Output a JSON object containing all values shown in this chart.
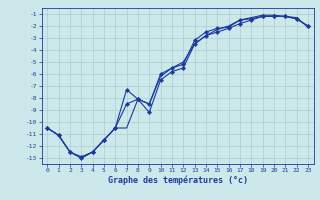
{
  "xlabel": "Graphe des températures (°c)",
  "bg_color": "#cce8ea",
  "line_color": "#1a3a9e",
  "grid_color": "#aacccc",
  "xlim": [
    -0.5,
    23.5
  ],
  "ylim": [
    -13.5,
    -0.5
  ],
  "yticks": [
    -13,
    -12,
    -11,
    -10,
    -9,
    -8,
    -7,
    -6,
    -5,
    -4,
    -3,
    -2,
    -1
  ],
  "xticks": [
    0,
    1,
    2,
    3,
    4,
    5,
    6,
    7,
    8,
    9,
    10,
    11,
    12,
    13,
    14,
    15,
    16,
    17,
    18,
    19,
    20,
    21,
    22,
    23
  ],
  "line1_x": [
    0,
    1,
    2,
    3,
    4,
    5,
    6,
    7,
    8,
    9,
    10,
    11,
    12,
    13,
    14,
    15,
    16,
    17,
    18,
    19,
    20,
    21,
    22,
    23
  ],
  "line1_y": [
    -10.5,
    -11.1,
    -12.5,
    -12.9,
    -12.5,
    -11.5,
    -10.5,
    -7.3,
    -8.1,
    -8.5,
    -6.0,
    -5.5,
    -5.2,
    -3.2,
    -2.5,
    -2.2,
    -2.1,
    -1.5,
    -1.4,
    -1.2,
    -1.2,
    -1.2,
    -1.4,
    -2.0
  ],
  "line2_x": [
    0,
    1,
    2,
    3,
    4,
    5,
    6,
    7,
    8,
    9,
    10,
    11,
    12,
    13,
    14,
    15,
    16,
    17,
    18,
    19,
    20,
    21,
    22,
    23
  ],
  "line2_y": [
    -10.5,
    -11.1,
    -12.5,
    -13.0,
    -12.5,
    -11.5,
    -10.5,
    -8.5,
    -8.1,
    -9.2,
    -6.5,
    -5.8,
    -5.5,
    -3.5,
    -2.8,
    -2.5,
    -2.2,
    -1.8,
    -1.5,
    -1.2,
    -1.2,
    -1.2,
    -1.4,
    -2.0
  ],
  "line3_x": [
    0,
    1,
    2,
    3,
    4,
    5,
    6,
    7,
    8,
    9,
    10,
    11,
    12,
    13,
    14,
    15,
    16,
    17,
    18,
    19,
    20,
    21,
    22,
    23
  ],
  "line3_y": [
    -10.5,
    -11.1,
    -12.5,
    -13.0,
    -12.5,
    -11.5,
    -10.5,
    -10.5,
    -8.1,
    -8.5,
    -6.2,
    -5.5,
    -5.0,
    -3.5,
    -2.8,
    -2.3,
    -2.0,
    -1.5,
    -1.3,
    -1.1,
    -1.1,
    -1.2,
    -1.3,
    -2.1
  ],
  "marker": "D",
  "markersize": 2.2,
  "linewidth": 0.8,
  "tick_fontsize": 4.5,
  "xlabel_fontsize": 6.0
}
